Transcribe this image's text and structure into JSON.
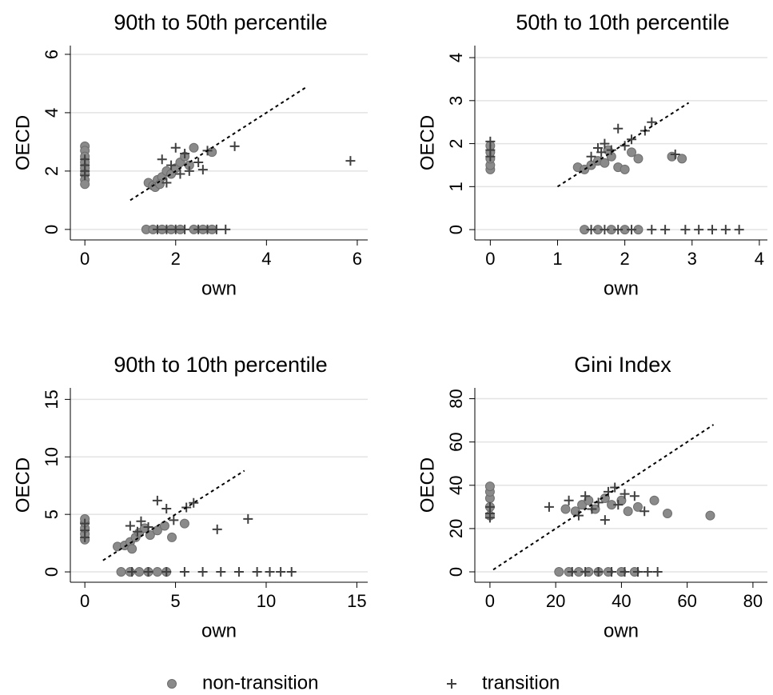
{
  "chart_data": [
    {
      "type": "scatter",
      "title": "90th to 50th percentile",
      "x_label": "own",
      "y_label": "OECD",
      "xlim": [
        -0.32,
        6.23
      ],
      "ylim": [
        -0.36,
        6.3
      ],
      "xticks": [
        0,
        2,
        4,
        6
      ],
      "yticks": [
        0,
        2,
        4,
        6
      ],
      "grid": true,
      "diagonal": [
        1,
        4.9
      ],
      "series": [
        {
          "name": "non-transition",
          "color": "#8a8a8a",
          "marker": "circle",
          "x": [
            0,
            0,
            0,
            0,
            0,
            0,
            0,
            0,
            1.4,
            1.5,
            1.6,
            1.7,
            1.8,
            1.9,
            2.0,
            2.1,
            2.2,
            2.4,
            2.8,
            1.55,
            2.3,
            1.65,
            1.35,
            1.5,
            1.7,
            1.9,
            2.1,
            2.4,
            2.6,
            2.8
          ],
          "values": [
            2.85,
            2.7,
            2.5,
            2.3,
            2.1,
            1.9,
            1.7,
            1.55,
            1.6,
            1.5,
            1.7,
            1.8,
            2.0,
            1.9,
            2.1,
            2.3,
            2.5,
            2.8,
            2.65,
            1.45,
            2.2,
            1.55,
            0,
            0,
            0,
            0,
            0,
            0,
            0,
            0
          ]
        },
        {
          "name": "transition",
          "color": "#404040",
          "marker": "plus",
          "x": [
            0,
            0,
            0,
            0,
            1.7,
            1.9,
            2.0,
            2.2,
            2.5,
            2.6,
            3.3,
            5.85,
            1.8,
            2.1,
            2.3,
            2.7,
            1.6,
            1.8,
            2.0,
            2.2,
            2.5,
            2.7,
            2.9,
            3.1
          ],
          "values": [
            2.4,
            2.2,
            2.0,
            1.85,
            2.4,
            2.2,
            2.8,
            2.6,
            2.3,
            2.05,
            2.85,
            2.35,
            1.6,
            1.9,
            2.0,
            2.7,
            0,
            0,
            0,
            0,
            0,
            0,
            0,
            0
          ]
        }
      ]
    },
    {
      "type": "scatter",
      "title": "50th to 10th percentile",
      "x_label": "own",
      "y_label": "OECD",
      "xlim": [
        -0.23,
        4.12
      ],
      "ylim": [
        -0.24,
        4.28
      ],
      "xticks": [
        0,
        1,
        2,
        3,
        4
      ],
      "yticks": [
        0,
        1,
        2,
        3,
        4
      ],
      "grid": true,
      "diagonal": [
        1,
        2.95
      ],
      "series": [
        {
          "name": "non-transition",
          "color": "#8a8a8a",
          "marker": "circle",
          "x": [
            0,
            0,
            0,
            0,
            0,
            1.3,
            1.4,
            1.5,
            1.6,
            1.7,
            1.8,
            1.9,
            2.0,
            2.1,
            2.2,
            2.7,
            2.85,
            1.75,
            1.4,
            1.6,
            1.8,
            2.0,
            2.2
          ],
          "values": [
            1.4,
            1.5,
            1.65,
            1.8,
            1.95,
            1.45,
            1.4,
            1.5,
            1.6,
            1.55,
            1.7,
            1.45,
            1.4,
            1.8,
            1.65,
            1.7,
            1.65,
            1.85,
            0,
            0,
            0,
            0,
            0
          ]
        },
        {
          "name": "transition",
          "color": "#404040",
          "marker": "plus",
          "x": [
            0,
            0,
            0,
            1.5,
            1.6,
            1.7,
            1.8,
            1.9,
            2.0,
            2.1,
            2.3,
            2.4,
            2.75,
            1.65,
            1.5,
            1.7,
            1.9,
            2.1,
            2.4,
            2.6,
            2.9,
            3.1,
            3.3,
            3.5,
            3.7
          ],
          "values": [
            2.05,
            1.85,
            1.7,
            1.7,
            1.9,
            2.0,
            1.85,
            2.35,
            1.95,
            2.1,
            2.3,
            2.5,
            1.75,
            1.8,
            0,
            0,
            0,
            0,
            0,
            0,
            0,
            0,
            0,
            0,
            0
          ]
        }
      ]
    },
    {
      "type": "scatter",
      "title": "90th to 10th percentile",
      "x_label": "own",
      "y_label": "OECD",
      "xlim": [
        -0.8,
        15.6
      ],
      "ylim": [
        -0.9,
        16
      ],
      "xticks": [
        0,
        5,
        10,
        15
      ],
      "yticks": [
        0,
        5,
        10,
        15
      ],
      "grid": true,
      "diagonal": [
        1,
        8.8
      ],
      "series": [
        {
          "name": "non-transition",
          "color": "#8a8a8a",
          "marker": "circle",
          "x": [
            0,
            0,
            0,
            0,
            0,
            1.8,
            2.2,
            2.5,
            2.8,
            3.0,
            3.3,
            3.6,
            4.0,
            4.4,
            4.8,
            5.5,
            2.6,
            2.0,
            2.5,
            3,
            3.5,
            4,
            4.5
          ],
          "values": [
            2.8,
            3.3,
            3.8,
            4.3,
            4.6,
            2.2,
            2.3,
            2.6,
            3.0,
            3.4,
            3.8,
            3.2,
            3.6,
            4.0,
            3.0,
            4.2,
            2.0,
            0,
            0,
            0,
            0,
            0,
            0
          ]
        },
        {
          "name": "transition",
          "color": "#404040",
          "marker": "plus",
          "x": [
            0,
            0,
            0,
            2.5,
            2.9,
            3.1,
            3.5,
            4.0,
            4.5,
            5.6,
            6.0,
            7.3,
            9.0,
            4.9,
            2.6,
            3.5,
            4.5,
            5.5,
            6.5,
            7.5,
            8.5,
            9.5,
            10.2,
            10.8,
            11.4
          ],
          "values": [
            4.2,
            3.6,
            3.0,
            4.0,
            3.5,
            4.4,
            3.9,
            6.2,
            5.5,
            5.6,
            6.0,
            3.7,
            4.6,
            4.5,
            0,
            0,
            0,
            0,
            0,
            0,
            0,
            0,
            0,
            0,
            0
          ]
        }
      ]
    },
    {
      "type": "scatter",
      "title": "Gini Index",
      "x_label": "own",
      "y_label": "OECD",
      "xlim": [
        -4.6,
        84.4
      ],
      "ylim": [
        -4.8,
        85
      ],
      "xticks": [
        0,
        20,
        40,
        60,
        80
      ],
      "yticks": [
        0,
        20,
        40,
        60,
        80
      ],
      "grid": true,
      "diagonal": [
        1,
        68
      ],
      "series": [
        {
          "name": "non-transition",
          "color": "#8a8a8a",
          "marker": "circle",
          "x": [
            0,
            0,
            0,
            0,
            0,
            23,
            26,
            28,
            30,
            32,
            35,
            37,
            40,
            42,
            45,
            50,
            54,
            67,
            21,
            24,
            27,
            30,
            33,
            36,
            40,
            44
          ],
          "values": [
            26,
            30,
            34,
            37,
            39.5,
            29,
            28,
            31,
            33,
            29,
            34,
            31,
            33,
            28,
            30,
            33,
            27,
            26,
            0,
            0,
            0,
            0,
            0,
            0,
            0,
            0
          ]
        },
        {
          "name": "transition",
          "color": "#404040",
          "marker": "plus",
          "x": [
            0,
            0,
            0,
            18,
            24,
            27,
            29,
            31,
            33,
            35,
            36,
            38,
            41,
            44,
            47,
            39,
            25,
            29,
            33,
            37,
            41,
            45,
            48,
            51
          ],
          "values": [
            30,
            27,
            25,
            30,
            33,
            26,
            35,
            29,
            32,
            24,
            37,
            39,
            36,
            35,
            28,
            31,
            0,
            0,
            0,
            0,
            0,
            0,
            0,
            0
          ]
        }
      ]
    }
  ]
}
